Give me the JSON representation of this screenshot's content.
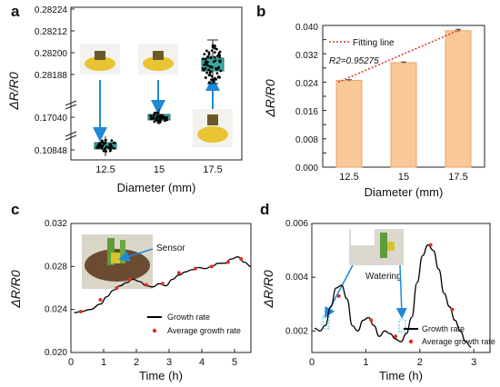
{
  "panels": {
    "a": {
      "label": "a"
    },
    "b": {
      "label": "b"
    },
    "c": {
      "label": "c"
    },
    "d": {
      "label": "d"
    }
  },
  "chart_data": [
    {
      "id": "a",
      "type": "box",
      "xlabel": "Diameter (mm)",
      "ylabel": "ΔR/R0",
      "x_tick_labels": [
        "12.5",
        "15",
        "17.5"
      ],
      "y_tick_labels": [
        "0.10848",
        "0.17040",
        "0.28188",
        "0.28200",
        "0.28212",
        "0.28224"
      ],
      "axis_breaks": true,
      "box_color": "#3aa9a6",
      "scatter_color": "#000000",
      "arrow_color": "#1e88d8",
      "boxes": [
        {
          "x": "12.5",
          "median": 0.10848
        },
        {
          "x": "15",
          "median": 0.1704
        },
        {
          "x": "17.5",
          "median": 0.282
        }
      ]
    },
    {
      "id": "b",
      "type": "bar",
      "xlabel": "Diameter (mm)",
      "ylabel": "ΔR/R0",
      "categories": [
        "12.5",
        "15",
        "17.5"
      ],
      "values": [
        0.0245,
        0.0295,
        0.0385
      ],
      "errors": [
        0.0002,
        0.0002,
        0.0004
      ],
      "ylim": [
        0,
        0.04
      ],
      "yticks": [
        "0.000",
        "0.004",
        "0.008",
        "0.012",
        "0.016",
        "0.020",
        "0.024",
        "0.028",
        "0.032",
        "0.036",
        "0.040"
      ],
      "bar_color": "#f9c898",
      "bar_edge": "#e7a56a",
      "fit_color": "#e0311f",
      "legend": "Fitting line",
      "annotation": "R2=0.95275"
    },
    {
      "id": "c",
      "type": "line",
      "xlabel": "Time (h)",
      "ylabel": "ΔR/R0",
      "xlim": [
        0,
        5.5
      ],
      "ylim": [
        0.02,
        0.032
      ],
      "xticks": [
        "0",
        "1",
        "2",
        "3",
        "4",
        "5"
      ],
      "yticks": [
        "0.020",
        "0.024",
        "0.028",
        "0.032"
      ],
      "inset_label": "Sensor",
      "series": [
        {
          "name": "Growth rate",
          "color": "#000000",
          "x": [
            0.1,
            0.3,
            0.6,
            0.9,
            1.1,
            1.3,
            1.5,
            1.7,
            1.9,
            2.1,
            2.3,
            2.5,
            2.7,
            2.9,
            3.1,
            3.3,
            3.5,
            3.7,
            3.9,
            4.1,
            4.3,
            4.5,
            4.7,
            4.9,
            5.1,
            5.3,
            5.5
          ],
          "y": [
            0.0237,
            0.0238,
            0.024,
            0.0245,
            0.0252,
            0.0258,
            0.0262,
            0.0265,
            0.0268,
            0.0266,
            0.0262,
            0.0261,
            0.0264,
            0.0262,
            0.0268,
            0.0272,
            0.0275,
            0.0277,
            0.0279,
            0.0278,
            0.028,
            0.0283,
            0.0283,
            0.0287,
            0.0289,
            0.0284,
            0.028
          ]
        },
        {
          "name": "Average growth rate",
          "color": "#e0311f",
          "x": [
            0.3,
            0.9,
            1.4,
            1.8,
            2.3,
            2.8,
            3.3,
            3.8,
            4.3,
            4.8,
            5.2
          ],
          "y": [
            0.0238,
            0.0249,
            0.026,
            0.0268,
            0.0263,
            0.0264,
            0.0274,
            0.0278,
            0.028,
            0.0284,
            0.0287
          ]
        }
      ]
    },
    {
      "id": "d",
      "type": "line",
      "xlabel": "Time (h)",
      "ylabel": "ΔR/R0",
      "xlim": [
        0,
        3.3
      ],
      "ylim": [
        0.0012,
        0.006
      ],
      "xticks": [
        "0",
        "1",
        "2",
        "3"
      ],
      "yticks": [
        "0.002",
        "0.004",
        "0.006"
      ],
      "inset_label": "Watering",
      "series": [
        {
          "name": "Growth rate",
          "color": "#000000",
          "x": [
            0.05,
            0.15,
            0.25,
            0.35,
            0.45,
            0.55,
            0.65,
            0.75,
            0.85,
            0.95,
            1.05,
            1.15,
            1.25,
            1.35,
            1.45,
            1.55,
            1.65,
            1.75,
            1.85,
            1.95,
            2.05,
            2.15,
            2.25,
            2.35,
            2.45,
            2.55,
            2.65,
            2.75,
            2.85,
            2.95
          ],
          "y": [
            0.0021,
            0.002,
            0.0022,
            0.0029,
            0.0036,
            0.0037,
            0.0032,
            0.0022,
            0.002,
            0.0024,
            0.0025,
            0.0022,
            0.0018,
            0.002,
            0.0019,
            0.0017,
            0.0016,
            0.0019,
            0.0025,
            0.0038,
            0.0048,
            0.0052,
            0.005,
            0.0043,
            0.0034,
            0.0029,
            0.0024,
            0.002,
            0.0016,
            0.0014
          ]
        },
        {
          "name": "Average growth rate",
          "color": "#e0311f",
          "x": [
            0.5,
            1.1,
            1.55,
            2.2,
            2.6
          ],
          "y": [
            0.0033,
            0.0024,
            0.0018,
            0.0052,
            0.0028
          ]
        }
      ]
    }
  ]
}
